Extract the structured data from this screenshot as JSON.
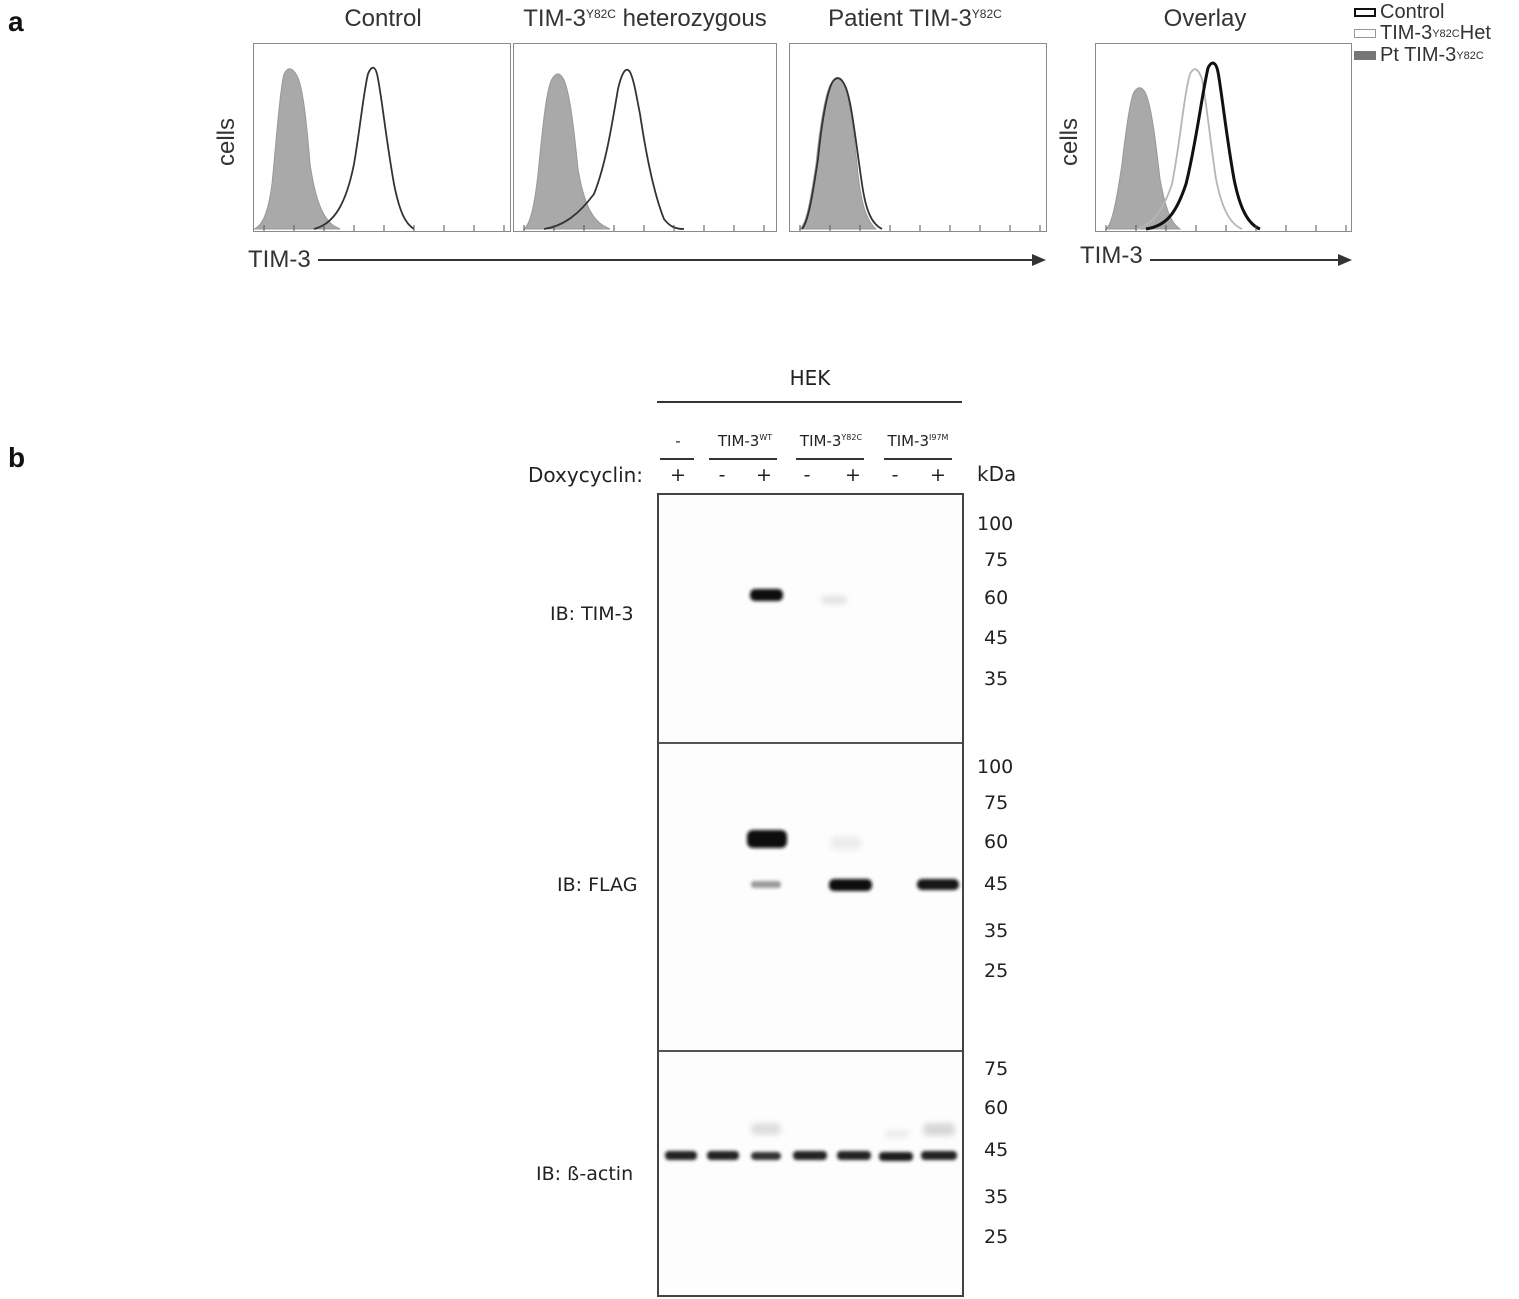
{
  "panel_a": {
    "letter": "a",
    "histograms": [
      {
        "title": "Control",
        "sup": ""
      },
      {
        "title": "TIM-3",
        "sup": "Y82C",
        "suffix": " heterozygous"
      },
      {
        "title": "Patient TIM-3",
        "sup": "Y82C"
      },
      {
        "title": "Overlay",
        "sup": ""
      }
    ],
    "y_label": "cells",
    "x_label": "TIM-3",
    "legend": [
      {
        "text": "Control",
        "swatch": "outline-black"
      },
      {
        "text": "TIM-3",
        "sup": "Y82C",
        "suffix": " Het",
        "swatch": "outline-gray"
      },
      {
        "text": "Pt TIM-3",
        "sup": "Y82C",
        "swatch": "fill-gray"
      }
    ]
  },
  "panel_b": {
    "letter": "b",
    "group_header": "HEK",
    "conditions": [
      {
        "text": "-",
        "sup": ""
      },
      {
        "text": "TIM-3",
        "sup": "WT"
      },
      {
        "text": "TIM-3",
        "sup": "Y82C"
      },
      {
        "text": "TIM-3",
        "sup": "I97M"
      }
    ],
    "doxy_label": "Doxycyclin:",
    "doxy_signs": [
      "+",
      "-",
      "+",
      "-",
      "+",
      "-",
      "+"
    ],
    "kda_label": "kDa",
    "blots": [
      {
        "label": "IB: TIM-3",
        "markers": [
          "100",
          "75",
          "60",
          "45",
          "35"
        ]
      },
      {
        "label": "IB: FLAG",
        "markers": [
          "100",
          "75",
          "60",
          "45",
          "35",
          "25"
        ]
      },
      {
        "label": "IB: ß-actin",
        "markers": [
          "75",
          "60",
          "45",
          "35",
          "25"
        ]
      }
    ]
  },
  "colors": {
    "fill_gray": "#a9a9a9",
    "line_dark": "#333333",
    "line_light": "#b5b5b5"
  }
}
